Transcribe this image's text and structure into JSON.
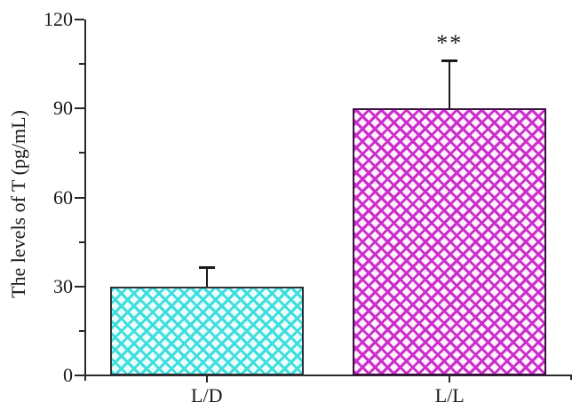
{
  "chart_data": {
    "type": "bar",
    "title": "",
    "xlabel": "",
    "ylabel": "The levels of T (pg/mL)",
    "categories": [
      "L/D",
      "L/L"
    ],
    "values": [
      30,
      90
    ],
    "errors": [
      6.5,
      16
    ],
    "error_direction": "upper-only",
    "significance": [
      "",
      "**"
    ],
    "ylim": [
      0,
      120
    ],
    "yticks": [
      0,
      30,
      60,
      90,
      120
    ],
    "yticks_minor": [
      15,
      45,
      75,
      105
    ],
    "grid": "off",
    "legend": "none",
    "spines": [
      "left",
      "bottom"
    ],
    "axis_color": "#2a2a2a",
    "error_bar_color": "#1a1a1a",
    "bars": [
      {
        "label": "L/D",
        "hatch": "dense-crosshatch",
        "hatch_color": "#3edede",
        "fill_bg": "#ecfcfc",
        "edge_color": "#2e3138"
      },
      {
        "label": "L/L",
        "hatch": "dense-crosshatch",
        "hatch_color": "#cc2ecc",
        "fill_bg": "#fdf1fd",
        "edge_color": "#3a1040"
      }
    ]
  }
}
